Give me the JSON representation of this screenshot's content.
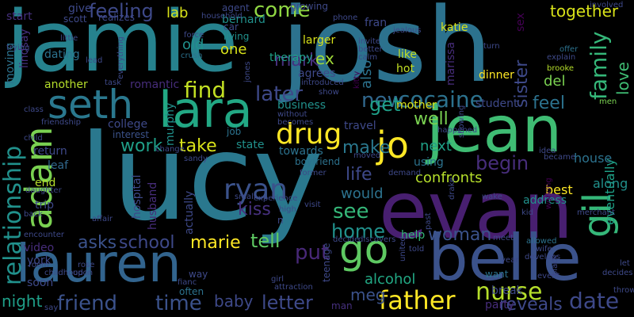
{
  "palette": {
    "background": "#000000",
    "purple": "#440154",
    "indigo": "#3b528b",
    "teal": "#21918c",
    "green": "#5ec962",
    "yellow": "#fde725"
  },
  "words": [
    {
      "text": "jamie",
      "color": "#26828e",
      "orient": "h"
    },
    {
      "text": "josh",
      "color": "#2c728e",
      "orient": "h"
    },
    {
      "text": "lucy",
      "color": "#2a788e",
      "orient": "h"
    },
    {
      "text": "evan",
      "color": "#481f70",
      "orient": "h"
    },
    {
      "text": "jean",
      "color": "#3fbc73",
      "orient": "h"
    },
    {
      "text": "belle",
      "color": "#3b528b",
      "orient": "h"
    },
    {
      "text": "lauren",
      "color": "#32648e",
      "orient": "h"
    },
    {
      "text": "lara",
      "color": "#22a884",
      "orient": "h"
    },
    {
      "text": "seth",
      "color": "#2a788e",
      "orient": "h"
    },
    {
      "text": "gil",
      "color": "#35b779",
      "orient": "v"
    },
    {
      "text": "adam",
      "color": "#7ad151",
      "orient": "v"
    },
    {
      "text": "go",
      "color": "#5ec962",
      "orient": "h"
    },
    {
      "text": "jo",
      "color": "#fde725",
      "orient": "h"
    },
    {
      "text": "father",
      "color": "#fde725",
      "orient": "h"
    },
    {
      "text": "drug",
      "color": "#fde725",
      "orient": "h"
    },
    {
      "text": "cocaine",
      "color": "#2c728e",
      "orient": "h"
    },
    {
      "text": "relationship",
      "color": "#21918c",
      "orient": "v"
    },
    {
      "text": "ryan",
      "color": "#3b528b",
      "orient": "h"
    },
    {
      "text": "nurse",
      "color": "#b5de2b",
      "orient": "h"
    },
    {
      "text": "family",
      "color": "#35b779",
      "orient": "v"
    },
    {
      "text": "find",
      "color": "#c2df23",
      "orient": "h"
    },
    {
      "text": "time",
      "color": "#3b528b",
      "orient": "h"
    },
    {
      "text": "friend",
      "color": "#3b528b",
      "orient": "h"
    },
    {
      "text": "date",
      "color": "#3e4989",
      "orient": "h"
    },
    {
      "text": "new",
      "color": "#31688e",
      "orient": "h"
    },
    {
      "text": "later",
      "color": "#3e4989",
      "orient": "h"
    },
    {
      "text": "letter",
      "color": "#3e4989",
      "orient": "h"
    },
    {
      "text": "come",
      "color": "#90d743",
      "orient": "h"
    },
    {
      "text": "mark",
      "color": "#46307e",
      "orient": "h"
    },
    {
      "text": "feeling",
      "color": "#3e4989",
      "orient": "h"
    },
    {
      "text": "lab",
      "color": "#d8e219",
      "orient": "h"
    },
    {
      "text": "sister",
      "color": "#3e4989",
      "orient": "v"
    },
    {
      "text": "together",
      "color": "#d8e219",
      "orient": "h"
    },
    {
      "text": "love",
      "color": "#3fbc73",
      "orient": "v"
    },
    {
      "text": "feel",
      "color": "#2c728e",
      "orient": "h"
    },
    {
      "text": "get",
      "color": "#1f9f88",
      "orient": "h"
    },
    {
      "text": "well",
      "color": "#7ad151",
      "orient": "h"
    },
    {
      "text": "begin",
      "color": "#472d7b",
      "orient": "h"
    },
    {
      "text": "make",
      "color": "#2a788e",
      "orient": "h"
    },
    {
      "text": "next",
      "color": "#1fa187",
      "orient": "h"
    },
    {
      "text": "life",
      "color": "#3e4989",
      "orient": "h"
    },
    {
      "text": "see",
      "color": "#35b779",
      "orient": "h"
    },
    {
      "text": "home",
      "color": "#21918c",
      "orient": "h"
    },
    {
      "text": "woman",
      "color": "#3b528b",
      "orient": "h"
    },
    {
      "text": "reveals",
      "color": "#3e4989",
      "orient": "h"
    },
    {
      "text": "meg",
      "color": "#3b528b",
      "orient": "h"
    },
    {
      "text": "alcohol",
      "color": "#22a884",
      "orient": "h"
    },
    {
      "text": "kiss",
      "color": "#46307e",
      "orient": "h"
    },
    {
      "text": "tell",
      "color": "#5ec962",
      "orient": "h"
    },
    {
      "text": "put",
      "color": "#482878",
      "orient": "h"
    },
    {
      "text": "marie",
      "color": "#fde725",
      "orient": "h"
    },
    {
      "text": "school",
      "color": "#3e4989",
      "orient": "h"
    },
    {
      "text": "asks",
      "color": "#3b528b",
      "orient": "h"
    },
    {
      "text": "work",
      "color": "#1f9f88",
      "orient": "h"
    },
    {
      "text": "take",
      "color": "#d8e219",
      "orient": "h"
    },
    {
      "text": "baby",
      "color": "#3e4989",
      "orient": "h"
    },
    {
      "text": "night",
      "color": "#1f9f88",
      "orient": "h"
    },
    {
      "text": "confronts",
      "color": "#b5de2b",
      "orient": "h"
    },
    {
      "text": "would",
      "color": "#2c728e",
      "orient": "h"
    },
    {
      "text": "ex",
      "color": "#a0da39",
      "orient": "h"
    },
    {
      "text": "one",
      "color": "#d8e219",
      "orient": "h"
    },
    {
      "text": "old",
      "color": "#21918c",
      "orient": "h"
    },
    {
      "text": "also",
      "color": "#2c728e",
      "orient": "v"
    },
    {
      "text": "eventually",
      "color": "#1fa187",
      "orient": "v"
    },
    {
      "text": "along",
      "color": "#21918c",
      "orient": "h"
    },
    {
      "text": "house",
      "color": "#2c728e",
      "orient": "h"
    },
    {
      "text": "best",
      "color": "#fde725",
      "orient": "h"
    },
    {
      "text": "address",
      "color": "#21918c",
      "orient": "h"
    },
    {
      "text": "del",
      "color": "#7ad151",
      "orient": "h"
    },
    {
      "text": "dinner",
      "color": "#fde725",
      "orient": "h"
    },
    {
      "text": "like",
      "color": "#c2df23",
      "orient": "h"
    },
    {
      "text": "hot",
      "color": "#c2df23",
      "orient": "h"
    },
    {
      "text": "marissa",
      "color": "#472d7b",
      "orient": "v"
    },
    {
      "text": "mother",
      "color": "#d8e219",
      "orient": "h"
    },
    {
      "text": "business",
      "color": "#21918c",
      "orient": "h"
    },
    {
      "text": "agrees",
      "color": "#3e4989",
      "orient": "h"
    },
    {
      "text": "larger",
      "color": "#d8e219",
      "orient": "h"
    },
    {
      "text": "therapy",
      "color": "#1fa187",
      "orient": "h"
    },
    {
      "text": "romantic",
      "color": "#472d7b",
      "orient": "h"
    },
    {
      "text": "another",
      "color": "#b5de2b",
      "orient": "h"
    },
    {
      "text": "college",
      "color": "#3e4989",
      "orient": "h"
    },
    {
      "text": "lindsay",
      "color": "#46307e",
      "orient": "v"
    },
    {
      "text": "dating",
      "color": "#2c728e",
      "orient": "h"
    },
    {
      "text": "moving",
      "color": "#2c728e",
      "orient": "v"
    },
    {
      "text": "give",
      "color": "#3e4989",
      "orient": "h"
    },
    {
      "text": "start",
      "color": "#46307e",
      "orient": "h"
    },
    {
      "text": "end",
      "color": "#b5de2b",
      "orient": "h"
    },
    {
      "text": "leaf",
      "color": "#31688e",
      "orient": "h"
    },
    {
      "text": "trip",
      "color": "#3e4989",
      "orient": "h"
    },
    {
      "text": "york",
      "color": "#3e4989",
      "orient": "h"
    },
    {
      "text": "soon",
      "color": "#3e4989",
      "orient": "h"
    },
    {
      "text": "video",
      "color": "#472d7b",
      "orient": "h"
    },
    {
      "text": "state",
      "color": "#21918c",
      "orient": "h"
    },
    {
      "text": "towards",
      "color": "#2c728e",
      "orient": "h"
    },
    {
      "text": "travel",
      "color": "#3e4989",
      "orient": "h"
    },
    {
      "text": "using",
      "color": "#2c728e",
      "orient": "h"
    },
    {
      "text": "help",
      "color": "#35b779",
      "orient": "h"
    },
    {
      "text": "student",
      "color": "#3e4989",
      "orient": "h"
    },
    {
      "text": "husband",
      "color": "#472d7b",
      "orient": "v"
    },
    {
      "text": "hospital",
      "color": "#3e4989",
      "orient": "v"
    },
    {
      "text": "actually",
      "color": "#3e4989",
      "orient": "v"
    },
    {
      "text": "murphy",
      "color": "#21918c",
      "orient": "v"
    },
    {
      "text": "bernard",
      "color": "#21918c",
      "orient": "h"
    },
    {
      "text": "katie",
      "color": "#d8e219",
      "orient": "h"
    },
    {
      "text": "fran",
      "color": "#3e4989",
      "orient": "h"
    },
    {
      "text": "sex",
      "color": "#440154",
      "orient": "v"
    },
    {
      "text": "party",
      "color": "#472d7b",
      "orient": "h"
    },
    {
      "text": "break",
      "color": "#3e4989",
      "orient": "h"
    },
    {
      "text": "return",
      "color": "#3e4989",
      "orient": "h"
    },
    {
      "text": "interest",
      "color": "#3b528b",
      "orient": "h"
    },
    {
      "text": "job",
      "color": "#2c728e",
      "orient": "h"
    },
    {
      "text": "boyfriend",
      "color": "#2c728e",
      "orient": "h"
    },
    {
      "text": "teenage",
      "color": "#3e4989",
      "orient": "v"
    },
    {
      "text": "man",
      "color": "#46307e",
      "orient": "h"
    },
    {
      "text": "way",
      "color": "#3e4989",
      "orient": "h"
    },
    {
      "text": "often",
      "color": "#2c728e",
      "orient": "h"
    },
    {
      "text": "want",
      "color": "#2c728e",
      "orient": "h"
    },
    {
      "text": "scott",
      "color": "#3e4989",
      "orient": "h"
    },
    {
      "text": "realizes",
      "color": "#3e4989",
      "orient": "h"
    },
    {
      "text": "car",
      "color": "#3e4989",
      "orient": "h"
    },
    {
      "text": "living",
      "color": "#21918c",
      "orient": "h"
    },
    {
      "text": "growing",
      "color": "#3e4989",
      "orient": "h"
    },
    {
      "text": "agent",
      "color": "#3e4989",
      "orient": "h"
    },
    {
      "text": "household",
      "color": "#3e4989",
      "orient": "h"
    },
    {
      "text": "phone",
      "color": "#3e4989",
      "orient": "h"
    },
    {
      "text": "force",
      "color": "#3e4989",
      "orient": "h"
    },
    {
      "text": "crush",
      "color": "#2c728e",
      "orient": "h"
    },
    {
      "text": "invite",
      "color": "#3e4989",
      "orient": "h"
    },
    {
      "text": "better",
      "color": "#3e4989",
      "orient": "h"
    },
    {
      "text": "calm",
      "color": "#3e4989",
      "orient": "h"
    },
    {
      "text": "jealous",
      "color": "#3e4989",
      "orient": "h"
    },
    {
      "text": "turn",
      "color": "#3e4989",
      "orient": "h"
    },
    {
      "text": "offer",
      "color": "#2c728e",
      "orient": "h"
    },
    {
      "text": "explain",
      "color": "#3e4989",
      "orient": "h"
    },
    {
      "text": "brooke",
      "color": "#b5de2b",
      "orient": "h"
    },
    {
      "text": "men",
      "color": "#7ad151",
      "orient": "h"
    },
    {
      "text": "involved",
      "color": "#3e4989",
      "orient": "h"
    },
    {
      "text": "trying",
      "color": "#3e4989",
      "orient": "h"
    },
    {
      "text": "little",
      "color": "#3e4989",
      "orient": "h"
    },
    {
      "text": "lead",
      "color": "#3e4989",
      "orient": "h"
    },
    {
      "text": "everything",
      "color": "#3e4989",
      "orient": "v"
    },
    {
      "text": "task",
      "color": "#3e4989",
      "orient": "h"
    },
    {
      "text": "jones",
      "color": "#3e4989",
      "orient": "v"
    },
    {
      "text": "introduced",
      "color": "#3e4989",
      "orient": "h"
    },
    {
      "text": "show",
      "color": "#3e4989",
      "orient": "h"
    },
    {
      "text": "kitty",
      "color": "#440154",
      "orient": "v"
    },
    {
      "text": "class",
      "color": "#3e4989",
      "orient": "h"
    },
    {
      "text": "friendship",
      "color": "#3e4989",
      "orient": "h"
    },
    {
      "text": "child",
      "color": "#3e4989",
      "orient": "h"
    },
    {
      "text": "change",
      "color": "#3e4989",
      "orient": "h"
    },
    {
      "text": "sandy",
      "color": "#3e4989",
      "orient": "h"
    },
    {
      "text": "without",
      "color": "#3e4989",
      "orient": "h"
    },
    {
      "text": "becomes",
      "color": "#3e4989",
      "orient": "h"
    },
    {
      "text": "happened",
      "color": "#3e4989",
      "orient": "h"
    },
    {
      "text": "showing",
      "color": "#3e4989",
      "orient": "v"
    },
    {
      "text": "moved",
      "color": "#3e4989",
      "orient": "h"
    },
    {
      "text": "demand",
      "color": "#3e4989",
      "orient": "h"
    },
    {
      "text": "idea",
      "color": "#3e4989",
      "orient": "h"
    },
    {
      "text": "became",
      "color": "#3e4989",
      "orient": "h"
    },
    {
      "text": "small",
      "color": "#3e4989",
      "orient": "h"
    },
    {
      "text": "former",
      "color": "#3e4989",
      "orient": "h"
    },
    {
      "text": "visit",
      "color": "#3e4989",
      "orient": "h"
    },
    {
      "text": "experience",
      "color": "#3e4989",
      "orient": "h"
    },
    {
      "text": "high",
      "color": "#3e4989",
      "orient": "h"
    },
    {
      "text": "n",
      "color": "#3e4989",
      "orient": "h"
    },
    {
      "text": "drake",
      "color": "#3e4989",
      "orient": "v"
    },
    {
      "text": "wake",
      "color": "#3e4989",
      "orient": "h"
    },
    {
      "text": "kid",
      "color": "#3e4989",
      "orient": "h"
    },
    {
      "text": "working",
      "color": "#440154",
      "orient": "v"
    },
    {
      "text": "merchant",
      "color": "#3e4989",
      "orient": "h"
    },
    {
      "text": "daughter",
      "color": "#3e4989",
      "orient": "h"
    },
    {
      "text": "back",
      "color": "#3e4989",
      "orient": "h"
    },
    {
      "text": "affair",
      "color": "#3e4989",
      "orient": "h"
    },
    {
      "text": "encounter",
      "color": "#3e4989",
      "orient": "h"
    },
    {
      "text": "decide",
      "color": "#3e4989",
      "orient": "h"
    },
    {
      "text": "discovers",
      "color": "#3e4989",
      "orient": "h"
    },
    {
      "text": "meet",
      "color": "#3e4989",
      "orient": "h"
    },
    {
      "text": "allowed",
      "color": "#2c728e",
      "orient": "h"
    },
    {
      "text": "wife",
      "color": "#3e4989",
      "orient": "h"
    },
    {
      "text": "united",
      "color": "#3e4989",
      "orient": "v"
    },
    {
      "text": "told",
      "color": "#3e4989",
      "orient": "h"
    },
    {
      "text": "past",
      "color": "#3e4989",
      "orient": "v"
    },
    {
      "text": "year",
      "color": "#3e4989",
      "orient": "h"
    },
    {
      "text": "develops",
      "color": "#3e4989",
      "orient": "h"
    },
    {
      "text": "black",
      "color": "#3e4989",
      "orient": "v"
    },
    {
      "text": "let",
      "color": "#3e4989",
      "orient": "h"
    },
    {
      "text": "decides",
      "color": "#3e4989",
      "orient": "h"
    },
    {
      "text": "room",
      "color": "#3e4989",
      "orient": "h"
    },
    {
      "text": "childhood",
      "color": "#3e4989",
      "orient": "h"
    },
    {
      "text": "upon",
      "color": "#3e4989",
      "orient": "h"
    },
    {
      "text": "rose",
      "color": "#3e4989",
      "orient": "h"
    },
    {
      "text": "fianc",
      "color": "#3e4989",
      "orient": "h"
    },
    {
      "text": "girl",
      "color": "#3e4989",
      "orient": "h"
    },
    {
      "text": "attraction",
      "color": "#3e4989",
      "orient": "h"
    },
    {
      "text": "event",
      "color": "#3e4989",
      "orient": "h"
    },
    {
      "text": "say",
      "color": "#3e4989",
      "orient": "h"
    },
    {
      "text": "throw",
      "color": "#3e4989",
      "orient": "h"
    }
  ]
}
